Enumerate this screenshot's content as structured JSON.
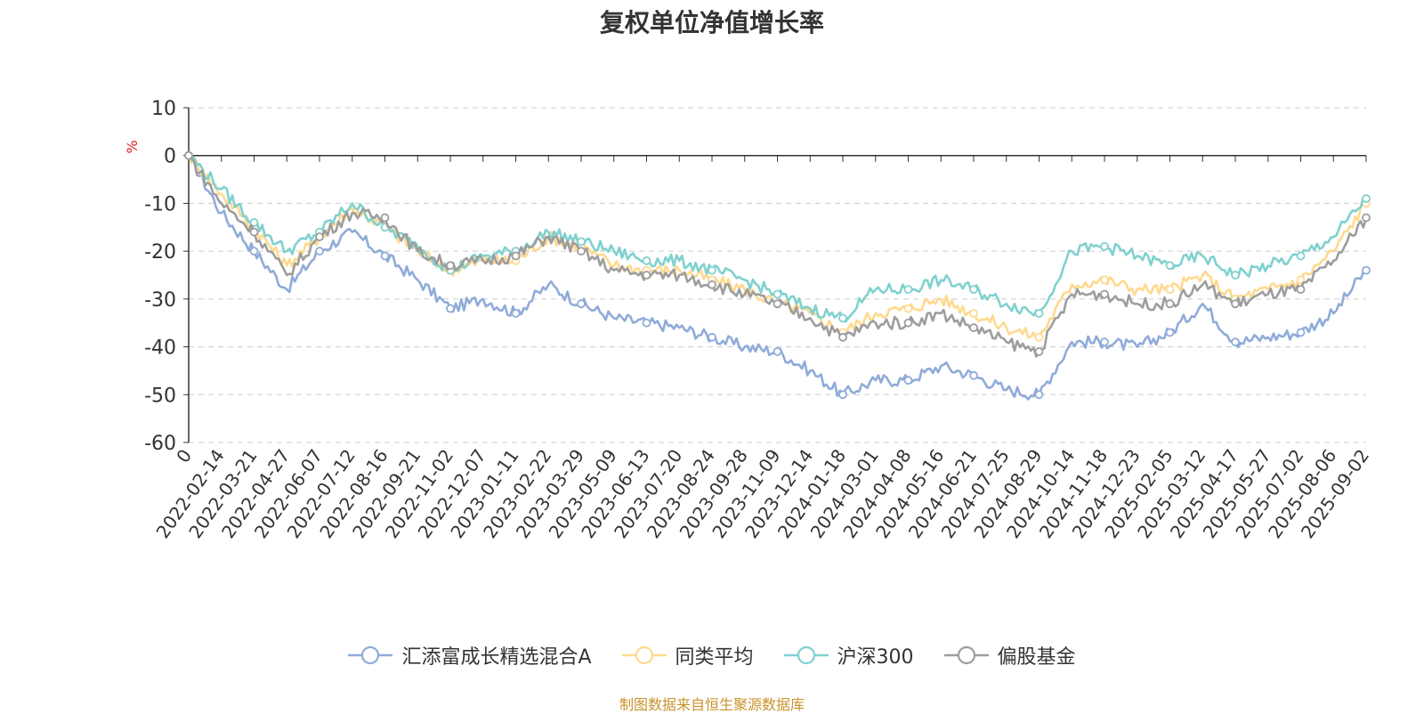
{
  "title": "复权单位净值增长率",
  "source": "制图数据来自恒生聚源数据库",
  "chart_data": {
    "type": "line",
    "title": "复权单位净值增长率",
    "ylabel": "%",
    "ylim": [
      -60,
      10
    ],
    "yticks": [
      10,
      0,
      -10,
      -20,
      -30,
      -40,
      -50,
      -60
    ],
    "grid": true,
    "legend_position": "bottom",
    "xticks": [
      "0",
      "2022-02-14",
      "2022-03-21",
      "2022-04-27",
      "2022-06-07",
      "2022-07-12",
      "2022-08-16",
      "2022-09-21",
      "2022-11-02",
      "2022-12-07",
      "2023-01-11",
      "2023-02-22",
      "2023-03-29",
      "2023-05-09",
      "2023-06-13",
      "2023-07-20",
      "2023-08-24",
      "2023-09-28",
      "2023-11-09",
      "2023-12-14",
      "2024-01-18",
      "2024-03-01",
      "2024-04-08",
      "2024-05-16",
      "2024-06-21",
      "2024-07-25",
      "2024-08-29",
      "2024-10-14",
      "2024-11-18",
      "2024-12-23",
      "2025-02-05",
      "2025-03-12",
      "2025-04-17",
      "2025-05-27",
      "2025-07-02",
      "2025-08-06",
      "2025-09-02"
    ],
    "series": [
      {
        "name": "汇添富成长精选混合A",
        "color": "#8fabd9",
        "values": [
          0,
          -12,
          -20,
          -28,
          -20,
          -16,
          -21,
          -26,
          -32,
          -30,
          -33,
          -27,
          -31,
          -34,
          -35,
          -36,
          -38,
          -40,
          -41,
          -45,
          -50,
          -47,
          -47,
          -44,
          -46,
          -49,
          -50,
          -39,
          -39,
          -40,
          -37,
          -31,
          -39,
          -38,
          -37,
          -33,
          -24
        ]
      },
      {
        "name": "同类平均",
        "color": "#ffd98e",
        "values": [
          0,
          -8,
          -15,
          -23,
          -17,
          -11,
          -15,
          -20,
          -24,
          -22,
          -22,
          -17,
          -19,
          -23,
          -24,
          -24,
          -26,
          -28,
          -31,
          -33,
          -37,
          -33,
          -32,
          -30,
          -33,
          -36,
          -38,
          -27,
          -26,
          -28,
          -28,
          -25,
          -30,
          -28,
          -26,
          -20,
          -10
        ]
      },
      {
        "name": "沪深300",
        "color": "#7fd1cf",
        "values": [
          0,
          -7,
          -14,
          -20,
          -16,
          -10,
          -15,
          -19,
          -24,
          -21,
          -20,
          -16,
          -18,
          -20,
          -22,
          -22,
          -24,
          -26,
          -29,
          -32,
          -34,
          -28,
          -28,
          -26,
          -28,
          -31,
          -33,
          -20,
          -19,
          -21,
          -23,
          -21,
          -25,
          -23,
          -21,
          -17,
          -9
        ]
      },
      {
        "name": "偏股基金",
        "color": "#9d9d9d",
        "values": [
          0,
          -10,
          -16,
          -25,
          -17,
          -12,
          -13,
          -20,
          -23,
          -22,
          -21,
          -17,
          -20,
          -24,
          -25,
          -25,
          -27,
          -29,
          -31,
          -34,
          -38,
          -35,
          -35,
          -33,
          -36,
          -39,
          -41,
          -29,
          -29,
          -31,
          -31,
          -27,
          -31,
          -29,
          -28,
          -22,
          -13
        ]
      }
    ]
  }
}
